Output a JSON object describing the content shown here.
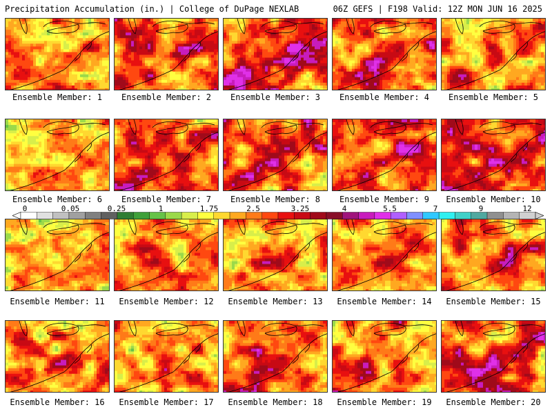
{
  "header": {
    "title": "Precipitation Accumulation (in.) | College of DuPage NEXLAB",
    "run_info": "06Z GEFS | F198 Valid: 12Z MON JUN 16 2025"
  },
  "caption_prefix": "Ensemble Member: ",
  "members": [
    {
      "label": "Ensemble Member: 1",
      "base": 0.42
    },
    {
      "label": "Ensemble Member: 2",
      "base": 0.55
    },
    {
      "label": "Ensemble Member: 3",
      "base": 0.62
    },
    {
      "label": "Ensemble Member: 4",
      "base": 0.5
    },
    {
      "label": "Ensemble Member: 5",
      "base": 0.45
    },
    {
      "label": "Ensemble Member: 6",
      "base": 0.3
    },
    {
      "label": "Ensemble Member: 7",
      "base": 0.5
    },
    {
      "label": "Ensemble Member: 8",
      "base": 0.55
    },
    {
      "label": "Ensemble Member: 9",
      "base": 0.55
    },
    {
      "label": "Ensemble Member: 10",
      "base": 0.62
    },
    {
      "label": "Ensemble Member: 11",
      "base": 0.3
    },
    {
      "label": "Ensemble Member: 12",
      "base": 0.38
    },
    {
      "label": "Ensemble Member: 13",
      "base": 0.42
    },
    {
      "label": "Ensemble Member: 14",
      "base": 0.45
    },
    {
      "label": "Ensemble Member: 15",
      "base": 0.42
    },
    {
      "label": "Ensemble Member: 16",
      "base": 0.48
    },
    {
      "label": "Ensemble Member: 17",
      "base": 0.35
    },
    {
      "label": "Ensemble Member: 18",
      "base": 0.52
    },
    {
      "label": "Ensemble Member: 19",
      "base": 0.45
    },
    {
      "label": "Ensemble Member: 20",
      "base": 0.55
    }
  ],
  "legend": {
    "labels": [
      "0",
      "0.05",
      "0.25",
      "1",
      "1.75",
      "2.5",
      "3.25",
      "4",
      "5.5",
      "7",
      "9",
      "12"
    ],
    "colors": [
      "#ffffff",
      "#e0e0e0",
      "#c0c0c0",
      "#a0a0a0",
      "#808080",
      "#606060",
      "#2e7d32",
      "#3fa03a",
      "#66c247",
      "#9bd94a",
      "#d8ee4a",
      "#ffff40",
      "#ffd830",
      "#ffa820",
      "#ff7a18",
      "#ff4810",
      "#e81010",
      "#c80a14",
      "#a00a1a",
      "#880e28",
      "#a0147c",
      "#c81cbc",
      "#e030e8",
      "#b060ff",
      "#8090ff",
      "#30c8ff",
      "#30f0f0",
      "#40d0c8",
      "#50a8a0",
      "#909090",
      "#b4b4b4",
      "#d0d0d0"
    ]
  }
}
